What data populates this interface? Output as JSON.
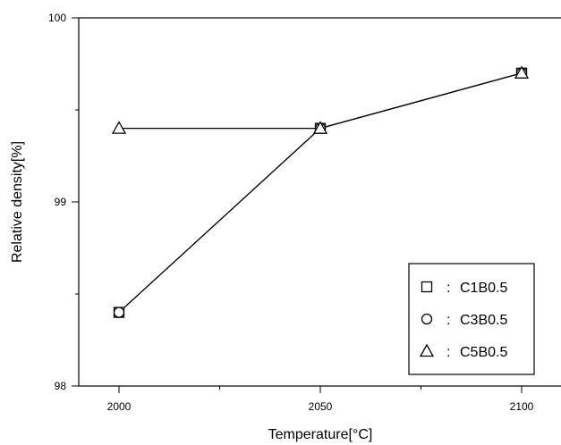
{
  "chart_data": {
    "type": "line",
    "title": "",
    "xlabel": "Temperature[°C]",
    "ylabel": "Relative density[%]",
    "x_ticks": [
      2000,
      2050,
      2100
    ],
    "y_ticks": [
      98,
      99,
      100
    ],
    "xlim": [
      1990,
      2110
    ],
    "ylim": [
      98,
      100
    ],
    "grid": false,
    "legend_position": "bottom-right",
    "series": [
      {
        "name": "C1B0.5",
        "marker": "square",
        "x": [
          2000,
          2050,
          2100
        ],
        "y": [
          98.4,
          99.4,
          99.7
        ]
      },
      {
        "name": "C3B0.5",
        "marker": "circle",
        "x": [
          2000,
          2050,
          2100
        ],
        "y": [
          98.4,
          99.4,
          99.7
        ]
      },
      {
        "name": "C5B0.5",
        "marker": "triangle",
        "x": [
          2000,
          2050,
          2100
        ],
        "y": [
          99.4,
          99.4,
          99.7
        ]
      }
    ],
    "legend_separator": ":"
  }
}
